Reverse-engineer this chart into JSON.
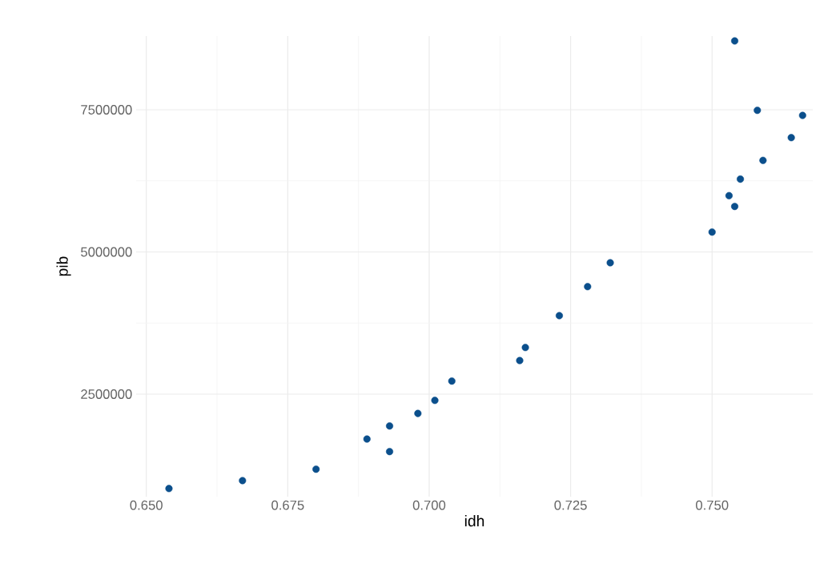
{
  "chart_data": {
    "type": "scatter",
    "xlabel": "idh",
    "ylabel": "pib",
    "x": [
      0.654,
      0.667,
      0.68,
      0.689,
      0.693,
      0.693,
      0.698,
      0.701,
      0.704,
      0.716,
      0.717,
      0.723,
      0.728,
      0.732,
      0.75,
      0.753,
      0.754,
      0.755,
      0.754,
      0.758,
      0.759,
      0.764,
      0.766
    ],
    "values": [
      840000,
      980000,
      1180000,
      1710000,
      1940000,
      1490000,
      2160000,
      2390000,
      2730000,
      3090000,
      3320000,
      3880000,
      4390000,
      4810000,
      5350000,
      5990000,
      5800000,
      6280000,
      8710000,
      7490000,
      6610000,
      7010000,
      7400000
    ],
    "color": "#0b4f8c",
    "marker": "circle",
    "grid": true,
    "xlim": [
      0.6482,
      0.7678
    ],
    "ylim": [
      697000,
      8796000
    ],
    "xticks": [
      {
        "value": 0.65,
        "label": "0.650"
      },
      {
        "value": 0.675,
        "label": "0.675"
      },
      {
        "value": 0.7,
        "label": "0.700"
      },
      {
        "value": 0.725,
        "label": "0.725"
      },
      {
        "value": 0.75,
        "label": "0.750"
      }
    ],
    "yticks": [
      2500000,
      5000000,
      7500000
    ]
  }
}
